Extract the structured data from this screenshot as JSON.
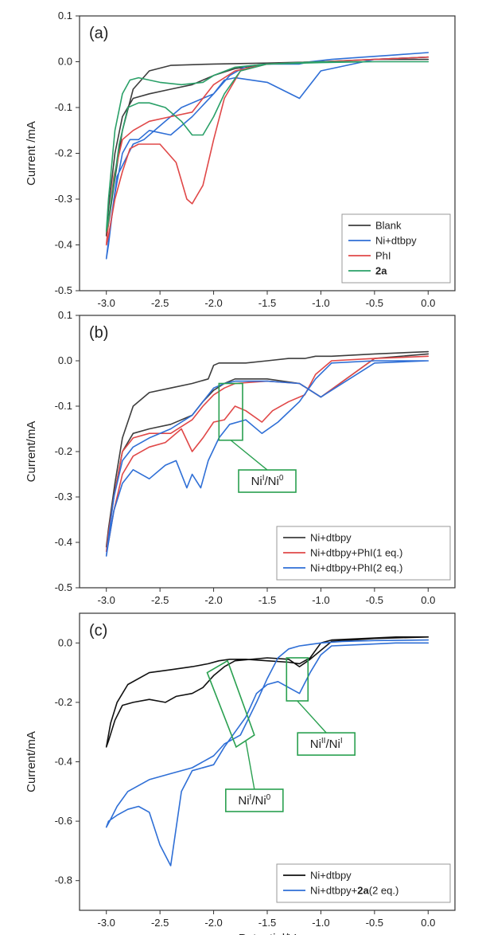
{
  "chart_data": [
    {
      "type": "line",
      "panel_label": "(a)",
      "ylabel": "Current /mA",
      "xlabel": "",
      "xlim": [
        -3.25,
        0.25
      ],
      "ylim": [
        -0.5,
        0.1
      ],
      "x_ticks": [
        -3.0,
        -2.5,
        -2.0,
        -1.5,
        -1.0,
        -0.5,
        0.0
      ],
      "x_tick_labels": [
        "-3.0",
        "-2.5",
        "-2.0",
        "-1.5",
        "-1.0",
        "-0.5",
        "0.0"
      ],
      "y_ticks": [
        -0.5,
        -0.4,
        -0.3,
        -0.2,
        -0.1,
        0.0,
        0.1
      ],
      "y_tick_labels": [
        "-0.5",
        "-0.4",
        "-0.3",
        "-0.2",
        "-0.1",
        "0.0",
        "0.1"
      ],
      "legend_position": "bottom-right",
      "series": [
        {
          "name": "Blank",
          "bold": false,
          "color": "#3d3d3d",
          "x": [
            0.0,
            -0.5,
            -1.0,
            -1.5,
            -2.0,
            -2.4,
            -2.6,
            -2.75,
            -2.85,
            -2.93,
            -2.99,
            -3.0,
            -2.98,
            -2.92,
            -2.85,
            -2.75,
            -2.6,
            -2.4,
            -2.2,
            -2.0,
            -1.8,
            -1.5,
            -1.0,
            -0.5,
            0.0
          ],
          "y": [
            0.01,
            0.005,
            0.0,
            -0.003,
            -0.005,
            -0.008,
            -0.02,
            -0.06,
            -0.15,
            -0.27,
            -0.37,
            -0.38,
            -0.32,
            -0.2,
            -0.12,
            -0.08,
            -0.07,
            -0.06,
            -0.05,
            -0.03,
            -0.015,
            -0.005,
            0.0,
            0.005,
            0.005
          ]
        },
        {
          "name": "Ni+dtbpy",
          "bold": false,
          "color": "#2f6fd6",
          "x": [
            0.0,
            -0.3,
            -0.6,
            -0.9,
            -1.1,
            -1.2,
            -1.3,
            -1.5,
            -1.7,
            -1.85,
            -2.0,
            -2.1,
            -2.3,
            -2.5,
            -2.65,
            -2.75,
            -2.9,
            -2.97,
            -3.0,
            -2.98,
            -2.93,
            -2.85,
            -2.78,
            -2.7,
            -2.6,
            -2.4,
            -2.2,
            -2.0,
            -1.9,
            -1.8,
            -1.5,
            -1.2,
            -1.0,
            -0.5,
            0.0
          ],
          "y": [
            0.02,
            0.015,
            0.01,
            0.005,
            0.0,
            -0.005,
            -0.005,
            -0.005,
            -0.01,
            -0.03,
            -0.07,
            -0.08,
            -0.1,
            -0.14,
            -0.17,
            -0.18,
            -0.25,
            -0.37,
            -0.43,
            -0.4,
            -0.3,
            -0.2,
            -0.17,
            -0.17,
            -0.15,
            -0.16,
            -0.12,
            -0.07,
            -0.04,
            -0.035,
            -0.045,
            -0.08,
            -0.02,
            0.005,
            0.01
          ]
        },
        {
          "name": "PhI",
          "bold": false,
          "color": "#e04848",
          "x": [
            0.0,
            -0.5,
            -1.0,
            -1.5,
            -1.75,
            -1.9,
            -2.0,
            -2.1,
            -2.2,
            -2.25,
            -2.35,
            -2.5,
            -2.6,
            -2.7,
            -2.78,
            -2.85,
            -2.92,
            -2.98,
            -3.0,
            -2.98,
            -2.93,
            -2.85,
            -2.75,
            -2.6,
            -2.4,
            -2.2,
            -2.1,
            -2.0,
            -1.8,
            -1.5,
            -1.0,
            -0.5,
            0.0
          ],
          "y": [
            0.01,
            0.005,
            0.0,
            -0.005,
            -0.02,
            -0.08,
            -0.17,
            -0.27,
            -0.31,
            -0.3,
            -0.22,
            -0.18,
            -0.18,
            -0.18,
            -0.19,
            -0.24,
            -0.3,
            -0.38,
            -0.4,
            -0.35,
            -0.25,
            -0.17,
            -0.15,
            -0.13,
            -0.12,
            -0.11,
            -0.08,
            -0.05,
            -0.02,
            -0.005,
            0.0,
            0.005,
            0.01
          ]
        },
        {
          "name": "2a",
          "bold": true,
          "color": "#2aa068",
          "x": [
            0.0,
            -0.5,
            -1.0,
            -1.5,
            -1.75,
            -1.9,
            -2.0,
            -2.1,
            -2.2,
            -2.3,
            -2.45,
            -2.6,
            -2.7,
            -2.8,
            -2.88,
            -2.94,
            -2.99,
            -3.0,
            -2.98,
            -2.92,
            -2.85,
            -2.78,
            -2.7,
            -2.5,
            -2.3,
            -2.1,
            -2.0,
            -1.8,
            -1.5,
            -1.0,
            -0.5,
            0.0
          ],
          "y": [
            0.0,
            0.0,
            -0.002,
            -0.005,
            -0.02,
            -0.07,
            -0.12,
            -0.16,
            -0.16,
            -0.13,
            -0.1,
            -0.09,
            -0.09,
            -0.1,
            -0.18,
            -0.28,
            -0.36,
            -0.37,
            -0.3,
            -0.15,
            -0.07,
            -0.04,
            -0.035,
            -0.045,
            -0.05,
            -0.045,
            -0.03,
            -0.012,
            -0.005,
            0.0,
            0.0,
            0.0
          ]
        }
      ]
    },
    {
      "type": "line",
      "panel_label": "(b)",
      "ylabel": "Current/mA",
      "xlabel": "",
      "xlim": [
        -3.25,
        0.25
      ],
      "ylim": [
        -0.5,
        0.1
      ],
      "x_ticks": [
        -3.0,
        -2.5,
        -2.0,
        -1.5,
        -1.0,
        -0.5,
        0.0
      ],
      "x_tick_labels": [
        "-3.0",
        "-2.5",
        "-2.0",
        "-1.5",
        "-1.0",
        "-0.5",
        "0.0"
      ],
      "y_ticks": [
        -0.5,
        -0.4,
        -0.3,
        -0.2,
        -0.1,
        0.0,
        0.1
      ],
      "y_tick_labels": [
        "-0.5",
        "-0.4",
        "-0.3",
        "-0.2",
        "-0.1",
        "0.0",
        "0.1"
      ],
      "legend_position": "bottom-right",
      "annotations": [
        {
          "text_main": "Ni",
          "sup1": "I",
          "mid": "/Ni",
          "sup2": "0",
          "box_x": [
            -1.95,
            -1.73
          ],
          "box_y": [
            -0.05,
            -0.175
          ],
          "label_x": -1.5,
          "label_y": -0.265
        }
      ],
      "series": [
        {
          "name": "Ni+dtbpy",
          "bold": false,
          "color": "#3d3d3d",
          "x": [
            0.0,
            -0.5,
            -0.9,
            -1.05,
            -1.15,
            -1.3,
            -1.5,
            -1.7,
            -1.85,
            -1.95,
            -2.0,
            -2.05,
            -2.2,
            -2.4,
            -2.6,
            -2.75,
            -2.85,
            -2.92,
            -2.98,
            -3.0,
            -2.98,
            -2.93,
            -2.85,
            -2.75,
            -2.6,
            -2.4,
            -2.2,
            -2.1,
            -2.0,
            -1.9,
            -1.8,
            -1.5,
            -1.2,
            -1.0,
            -0.5,
            0.0
          ],
          "y": [
            0.02,
            0.015,
            0.01,
            0.01,
            0.005,
            0.005,
            0.0,
            -0.005,
            -0.005,
            -0.005,
            -0.01,
            -0.04,
            -0.05,
            -0.06,
            -0.07,
            -0.1,
            -0.17,
            -0.27,
            -0.37,
            -0.41,
            -0.38,
            -0.3,
            -0.2,
            -0.16,
            -0.15,
            -0.14,
            -0.12,
            -0.09,
            -0.065,
            -0.05,
            -0.04,
            -0.04,
            -0.05,
            -0.08,
            0.005,
            0.015
          ]
        },
        {
          "name": "Ni+dtbpy+PhI(1 eq.)",
          "bold": false,
          "color": "#e04848",
          "x": [
            0.0,
            -0.5,
            -0.9,
            -1.05,
            -1.15,
            -1.3,
            -1.45,
            -1.55,
            -1.7,
            -1.8,
            -1.9,
            -2.0,
            -2.1,
            -2.2,
            -2.3,
            -2.45,
            -2.6,
            -2.75,
            -2.85,
            -2.93,
            -2.98,
            -3.0,
            -2.98,
            -2.93,
            -2.85,
            -2.75,
            -2.6,
            -2.4,
            -2.2,
            -2.1,
            -2.0,
            -1.9,
            -1.8,
            -1.5,
            -1.2,
            -1.0,
            -0.5,
            0.0
          ],
          "y": [
            0.01,
            0.005,
            0.0,
            -0.03,
            -0.075,
            -0.09,
            -0.11,
            -0.135,
            -0.11,
            -0.1,
            -0.13,
            -0.135,
            -0.17,
            -0.2,
            -0.15,
            -0.18,
            -0.19,
            -0.21,
            -0.25,
            -0.33,
            -0.4,
            -0.42,
            -0.38,
            -0.3,
            -0.2,
            -0.17,
            -0.16,
            -0.16,
            -0.13,
            -0.1,
            -0.075,
            -0.06,
            -0.05,
            -0.045,
            -0.05,
            -0.08,
            0.005,
            0.01
          ]
        },
        {
          "name": "Ni+dtbpy+PhI(2 eq.)",
          "bold": false,
          "color": "#2f6fd6",
          "x": [
            0.0,
            -0.5,
            -0.9,
            -1.05,
            -1.2,
            -1.4,
            -1.55,
            -1.7,
            -1.85,
            -1.95,
            -2.05,
            -2.12,
            -2.2,
            -2.25,
            -2.35,
            -2.45,
            -2.6,
            -2.75,
            -2.85,
            -2.93,
            -2.98,
            -3.0,
            -2.98,
            -2.93,
            -2.85,
            -2.75,
            -2.6,
            -2.4,
            -2.2,
            -2.1,
            -2.0,
            -1.9,
            -1.8,
            -1.5,
            -1.2,
            -1.0,
            -0.5,
            0.0
          ],
          "y": [
            0.0,
            0.0,
            -0.005,
            -0.04,
            -0.09,
            -0.135,
            -0.16,
            -0.13,
            -0.14,
            -0.17,
            -0.22,
            -0.28,
            -0.25,
            -0.28,
            -0.22,
            -0.23,
            -0.26,
            -0.24,
            -0.27,
            -0.33,
            -0.4,
            -0.43,
            -0.39,
            -0.3,
            -0.22,
            -0.19,
            -0.17,
            -0.15,
            -0.12,
            -0.09,
            -0.06,
            -0.05,
            -0.045,
            -0.045,
            -0.05,
            -0.08,
            -0.005,
            0.0
          ]
        }
      ]
    },
    {
      "type": "line",
      "panel_label": "(c)",
      "ylabel": "Current/mA",
      "xlabel": "Potential/V",
      "xlim": [
        -3.25,
        0.25
      ],
      "ylim": [
        -0.9,
        0.1
      ],
      "x_ticks": [
        -3.0,
        -2.5,
        -2.0,
        -1.5,
        -1.0,
        -0.5,
        0.0
      ],
      "x_tick_labels": [
        "-3.0",
        "-2.5",
        "-2.0",
        "-1.5",
        "-1.0",
        "-0.5",
        "0.0"
      ],
      "y_ticks": [
        -0.8,
        -0.6,
        -0.4,
        -0.2,
        0.0
      ],
      "y_tick_labels": [
        "-0.8",
        "-0.6",
        "-0.4",
        "-0.2",
        "0.0"
      ],
      "legend_position": "bottom-right",
      "annotations": [
        {
          "text_main": "Ni",
          "sup1": "I",
          "mid": "/Ni",
          "sup2": "0",
          "box_rotated": true,
          "label_x": -1.62,
          "label_y": -0.53
        },
        {
          "text_main": "Ni",
          "sup1": "II",
          "mid": "/Ni",
          "sup2": "I",
          "box_x": [
            -1.32,
            -1.12
          ],
          "box_y": [
            -0.05,
            -0.195
          ],
          "label_x": -0.95,
          "label_y": -0.34
        }
      ],
      "series": [
        {
          "name": "Ni+dtbpy",
          "bold": false,
          "color": "#111111",
          "x": [
            0.0,
            -0.3,
            -0.6,
            -0.9,
            -1.0,
            -1.1,
            -1.2,
            -1.3,
            -1.5,
            -1.7,
            -1.85,
            -1.95,
            -2.05,
            -2.2,
            -2.4,
            -2.6,
            -2.8,
            -2.9,
            -2.96,
            -3.0,
            -2.98,
            -2.92,
            -2.85,
            -2.75,
            -2.6,
            -2.45,
            -2.35,
            -2.2,
            -2.1,
            -2.0,
            -1.9,
            -1.8,
            -1.5,
            -1.3,
            -1.2,
            -1.1,
            -0.9,
            -0.5,
            0.0
          ],
          "y": [
            0.02,
            0.02,
            0.015,
            0.01,
            0.0,
            -0.05,
            -0.07,
            -0.065,
            -0.06,
            -0.055,
            -0.055,
            -0.06,
            -0.07,
            -0.08,
            -0.09,
            -0.1,
            -0.14,
            -0.2,
            -0.27,
            -0.35,
            -0.33,
            -0.26,
            -0.21,
            -0.2,
            -0.19,
            -0.2,
            -0.18,
            -0.17,
            -0.15,
            -0.11,
            -0.08,
            -0.06,
            -0.05,
            -0.055,
            -0.08,
            -0.055,
            0.005,
            0.015,
            0.02
          ]
        },
        {
          "name": "Ni+dtbpy+2a(2 eq.)",
          "bold_part": "2a",
          "prefix": "Ni+dtbpy+",
          "suffix": "(2 eq.)",
          "color": "#2f6fd6",
          "x": [
            0.0,
            -0.3,
            -0.6,
            -0.9,
            -1.0,
            -1.1,
            -1.2,
            -1.3,
            -1.4,
            -1.5,
            -1.6,
            -1.7,
            -1.8,
            -1.9,
            -2.0,
            -2.2,
            -2.3,
            -2.4,
            -2.5,
            -2.6,
            -2.7,
            -2.8,
            -2.9,
            -2.98,
            -3.0,
            -2.97,
            -2.9,
            -2.8,
            -2.6,
            -2.4,
            -2.2,
            -2.0,
            -1.9,
            -1.75,
            -1.6,
            -1.5,
            -1.4,
            -1.3,
            -1.2,
            -1.1,
            -1.0,
            -0.8,
            -0.5,
            0.0
          ],
          "y": [
            0.0,
            0.0,
            -0.005,
            -0.01,
            -0.04,
            -0.1,
            -0.17,
            -0.15,
            -0.13,
            -0.14,
            -0.17,
            -0.25,
            -0.3,
            -0.35,
            -0.41,
            -0.43,
            -0.5,
            -0.75,
            -0.68,
            -0.57,
            -0.55,
            -0.56,
            -0.58,
            -0.6,
            -0.62,
            -0.6,
            -0.55,
            -0.5,
            -0.46,
            -0.44,
            -0.42,
            -0.38,
            -0.34,
            -0.31,
            -0.2,
            -0.12,
            -0.05,
            -0.02,
            -0.01,
            -0.005,
            0.0,
            0.005,
            0.008,
            0.01
          ]
        }
      ]
    }
  ]
}
